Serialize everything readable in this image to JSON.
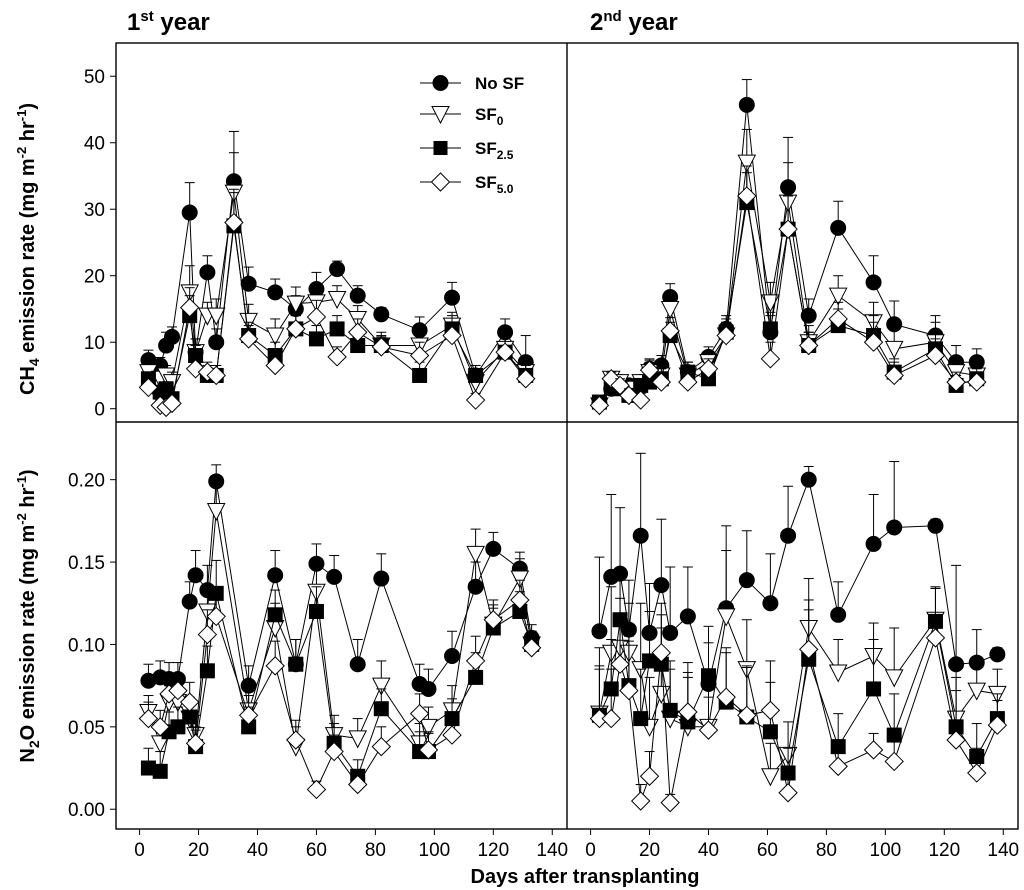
{
  "figure": {
    "x_axis_title": "Days after transplanting",
    "panel_titles": [
      {
        "base": "1",
        "sup": "st",
        "rest": " year"
      },
      {
        "base": "2",
        "sup": "nd",
        "rest": " year"
      }
    ],
    "ylabel_ch4": {
      "pre": "CH",
      "sub": "4",
      "mid": " emission rate (mg m",
      "sup1": "-2",
      "mid2": " hr",
      "sup2": "-1",
      "end": ")"
    },
    "ylabel_n2o": {
      "pre": "N",
      "sub": "2",
      "mid": "O emission rate (mg m",
      "sup1": "-2",
      "mid2": " hr",
      "sup2": "-1",
      "end": ")"
    },
    "legend": [
      {
        "base": "No SF",
        "sub": ""
      },
      {
        "base": "SF",
        "sub": "0"
      },
      {
        "base": "SF",
        "sub": "2.5"
      },
      {
        "base": "SF",
        "sub": "5.0"
      }
    ]
  },
  "chart_data": [
    {
      "type": "scatter",
      "title": "1st year",
      "xlabel": "Days after transplanting",
      "ylabel": "CH4 emission rate (mg m-2 hr-1)",
      "xlim": [
        -8,
        145
      ],
      "ylim": [
        -2,
        55
      ],
      "xticks": [
        0,
        20,
        40,
        60,
        80,
        100,
        120,
        140
      ],
      "yticks": [
        0,
        10,
        20,
        30,
        40,
        50
      ],
      "ytick_labels": [
        "0",
        "10",
        "20",
        "30",
        "40",
        "50"
      ],
      "x": [
        3,
        7,
        9,
        11,
        17,
        19,
        23,
        26,
        32,
        37,
        46,
        53,
        60,
        67,
        74,
        82,
        95,
        106,
        114,
        124,
        131
      ],
      "series": [
        {
          "name": "No SF",
          "marker": "circle",
          "values": [
            7.3,
            6.5,
            9.5,
            10.8,
            29.5,
            8.5,
            20.5,
            10.0,
            34.2,
            18.8,
            17.5,
            15.0,
            18.0,
            21.0,
            17.0,
            14.2,
            11.8,
            16.7,
            5.0,
            11.5,
            7.0
          ],
          "errors": [
            1.5,
            1.2,
            2.0,
            1.5,
            4.5,
            2.0,
            2.5,
            2.0,
            7.5,
            2.5,
            2.0,
            2.0,
            2.5,
            1.2,
            1.5,
            1.0,
            2.0,
            2.3,
            1.5,
            2.0,
            4.0
          ]
        },
        {
          "name": "SF0",
          "marker": "triangle-down",
          "values": [
            5.5,
            4.5,
            5.0,
            4.0,
            17.5,
            8.5,
            14.0,
            14.0,
            32.5,
            13.2,
            11.0,
            15.8,
            16.0,
            16.5,
            13.5,
            9.5,
            9.5,
            12.5,
            4.0,
            9.0,
            5.5
          ],
          "errors": [
            1.0,
            1.0,
            1.5,
            1.5,
            4.0,
            2.0,
            2.0,
            2.5,
            6.0,
            2.5,
            2.5,
            2.5,
            2.5,
            2.0,
            2.0,
            2.0,
            2.0,
            2.0,
            1.5,
            2.0,
            2.0
          ]
        },
        {
          "name": "SF2.5",
          "marker": "square",
          "values": [
            4.5,
            2.5,
            3.0,
            1.5,
            14.0,
            8.0,
            5.0,
            5.0,
            27.5,
            11.0,
            8.0,
            12.0,
            10.5,
            12.0,
            9.5,
            9.5,
            5.0,
            12.0,
            5.0,
            8.5,
            5.0
          ],
          "errors": [
            1.0,
            1.0,
            1.0,
            1.0,
            3.0,
            1.5,
            1.5,
            1.5,
            5.0,
            2.0,
            2.0,
            2.0,
            2.0,
            2.0,
            1.5,
            1.5,
            2.0,
            2.0,
            1.5,
            2.0,
            2.0
          ]
        },
        {
          "name": "SF5.0",
          "marker": "diamond",
          "values": [
            3.2,
            0.5,
            0.2,
            0.8,
            15.2,
            6.0,
            5.5,
            5.0,
            28.0,
            10.5,
            6.5,
            12.0,
            13.8,
            7.8,
            11.5,
            9.3,
            8.0,
            11.0,
            1.3,
            8.5,
            4.5
          ],
          "errors": [
            1.0,
            0.8,
            0.5,
            0.8,
            3.0,
            1.5,
            1.5,
            1.5,
            5.0,
            2.0,
            1.5,
            2.0,
            2.5,
            1.5,
            2.0,
            1.5,
            2.0,
            2.0,
            1.0,
            2.0,
            2.0
          ]
        }
      ]
    },
    {
      "type": "scatter",
      "title": "2nd year",
      "xlabel": "Days after transplanting",
      "ylabel": "CH4 emission rate (mg m-2 hr-1)",
      "xlim": [
        -8,
        145
      ],
      "ylim": [
        -2,
        55
      ],
      "xticks": [
        0,
        20,
        40,
        60,
        80,
        100,
        120,
        140
      ],
      "yticks": [
        0,
        10,
        20,
        30,
        40,
        50
      ],
      "x": [
        3,
        7,
        10,
        13,
        17,
        20,
        24,
        27,
        33,
        40,
        46,
        53,
        61,
        67,
        74,
        84,
        96,
        103,
        117,
        124,
        131
      ],
      "series": [
        {
          "name": "No SF",
          "marker": "circle",
          "values": [
            0.8,
            3.0,
            4.0,
            3.5,
            4.0,
            6.0,
            6.5,
            16.8,
            5.5,
            7.8,
            12.0,
            45.7,
            11.5,
            33.3,
            14.0,
            27.2,
            19.0,
            12.7,
            11.0,
            7.0,
            7.0
          ],
          "errors": [
            1.0,
            1.0,
            1.0,
            1.0,
            1.0,
            1.5,
            1.5,
            2.0,
            1.5,
            1.5,
            2.0,
            3.8,
            2.5,
            7.5,
            2.5,
            4.0,
            4.0,
            3.5,
            3.0,
            2.5,
            2.0
          ]
        },
        {
          "name": "SF0",
          "marker": "triangle-down",
          "values": [
            0.5,
            4.5,
            4.0,
            3.0,
            4.0,
            5.5,
            5.0,
            15.0,
            5.0,
            7.0,
            11.0,
            37.0,
            16.0,
            31.0,
            10.0,
            17.0,
            13.0,
            9.0,
            10.0,
            5.5,
            5.0
          ],
          "errors": [
            1.0,
            1.0,
            1.0,
            1.0,
            1.0,
            1.5,
            1.5,
            2.0,
            1.5,
            1.5,
            2.0,
            5.0,
            3.0,
            6.0,
            2.5,
            3.0,
            3.0,
            3.0,
            3.0,
            2.0,
            2.0
          ]
        },
        {
          "name": "SF2.5",
          "marker": "square",
          "values": [
            1.0,
            3.5,
            3.0,
            2.0,
            3.5,
            4.0,
            4.5,
            11.0,
            5.5,
            4.5,
            11.5,
            31.0,
            12.0,
            27.0,
            9.5,
            12.5,
            11.0,
            5.5,
            9.0,
            3.5,
            4.5
          ],
          "errors": [
            1.0,
            1.0,
            1.0,
            1.0,
            1.0,
            1.0,
            1.5,
            2.0,
            1.5,
            1.5,
            2.0,
            4.5,
            2.5,
            5.0,
            2.0,
            2.5,
            3.0,
            2.0,
            2.5,
            1.5,
            1.5
          ]
        },
        {
          "name": "SF5.0",
          "marker": "diamond",
          "values": [
            0.5,
            4.5,
            3.5,
            2.0,
            1.3,
            5.8,
            4.0,
            11.7,
            4.0,
            6.0,
            11.0,
            32.0,
            7.5,
            27.0,
            9.5,
            13.5,
            10.0,
            5.0,
            8.0,
            4.0,
            4.0
          ],
          "errors": [
            1.0,
            1.0,
            1.0,
            1.0,
            1.0,
            1.5,
            1.5,
            2.0,
            1.5,
            1.5,
            2.0,
            4.5,
            2.5,
            5.0,
            2.0,
            2.5,
            3.0,
            2.0,
            2.5,
            1.5,
            1.5
          ]
        }
      ]
    },
    {
      "type": "scatter",
      "title": "1st year",
      "xlabel": "Days after transplanting",
      "ylabel": "N2O emission rate (mg m-2 hr-1)",
      "xlim": [
        -8,
        145
      ],
      "ylim": [
        -0.012,
        0.235
      ],
      "xticks": [
        0,
        20,
        40,
        60,
        80,
        100,
        120,
        140
      ],
      "xtick_labels": [
        "0",
        "20",
        "40",
        "60",
        "80",
        "100",
        "120",
        "140"
      ],
      "yticks": [
        0.0,
        0.05,
        0.1,
        0.15,
        0.2
      ],
      "ytick_labels": [
        "0.00",
        "0.05",
        "0.10",
        "0.15",
        "0.20"
      ],
      "x": [
        3,
        7,
        10,
        13,
        17,
        19,
        23,
        26,
        37,
        46,
        53,
        60,
        66,
        74,
        82,
        95,
        98,
        106,
        114,
        120,
        129,
        133
      ],
      "series": [
        {
          "name": "No SF",
          "marker": "circle",
          "values": [
            0.078,
            0.08,
            0.079,
            0.079,
            0.126,
            0.142,
            0.133,
            0.199,
            0.075,
            0.142,
            0.088,
            0.149,
            0.141,
            0.088,
            0.14,
            0.076,
            0.073,
            0.093,
            0.135,
            0.158,
            0.146,
            0.104
          ],
          "errors": [
            0.01,
            0.01,
            0.01,
            0.01,
            0.012,
            0.015,
            0.015,
            0.01,
            0.012,
            0.015,
            0.015,
            0.012,
            0.013,
            0.015,
            0.015,
            0.012,
            0.012,
            0.015,
            0.015,
            0.01,
            0.01,
            0.008
          ]
        },
        {
          "name": "SF0",
          "marker": "triangle-down",
          "values": [
            0.059,
            0.04,
            0.065,
            0.065,
            0.055,
            0.045,
            0.12,
            0.181,
            0.06,
            0.11,
            0.038,
            0.132,
            0.045,
            0.043,
            0.075,
            0.04,
            0.05,
            0.06,
            0.155,
            0.112,
            0.14,
            0.1
          ],
          "errors": [
            0.01,
            0.01,
            0.01,
            0.01,
            0.012,
            0.012,
            0.015,
            0.015,
            0.012,
            0.015,
            0.012,
            0.015,
            0.012,
            0.012,
            0.015,
            0.012,
            0.012,
            0.015,
            0.015,
            0.012,
            0.012,
            0.008
          ]
        },
        {
          "name": "SF2.5",
          "marker": "square",
          "values": [
            0.025,
            0.023,
            0.047,
            0.05,
            0.056,
            0.038,
            0.084,
            0.131,
            0.05,
            0.118,
            0.088,
            0.12,
            0.04,
            0.02,
            0.061,
            0.035,
            0.035,
            0.055,
            0.08,
            0.11,
            0.12,
            0.1
          ],
          "errors": [
            0.012,
            0.012,
            0.012,
            0.012,
            0.012,
            0.01,
            0.015,
            0.02,
            0.012,
            0.015,
            0.015,
            0.015,
            0.012,
            0.01,
            0.012,
            0.012,
            0.012,
            0.012,
            0.015,
            0.012,
            0.012,
            0.008
          ]
        },
        {
          "name": "SF5.0",
          "marker": "diamond",
          "values": [
            0.055,
            0.05,
            0.07,
            0.072,
            0.065,
            0.04,
            0.106,
            0.117,
            0.057,
            0.087,
            0.042,
            0.012,
            0.035,
            0.015,
            0.038,
            0.058,
            0.036,
            0.045,
            0.09,
            0.115,
            0.127,
            0.098
          ],
          "errors": [
            0.01,
            0.01,
            0.01,
            0.01,
            0.012,
            0.01,
            0.015,
            0.015,
            0.012,
            0.015,
            0.012,
            0.005,
            0.01,
            0.008,
            0.012,
            0.012,
            0.01,
            0.012,
            0.015,
            0.012,
            0.012,
            0.008
          ]
        }
      ]
    },
    {
      "type": "scatter",
      "title": "2nd year",
      "xlabel": "Days after transplanting",
      "ylabel": "N2O emission rate (mg m-2 hr-1)",
      "xlim": [
        -8,
        145
      ],
      "ylim": [
        -0.012,
        0.235
      ],
      "xticks": [
        0,
        20,
        40,
        60,
        80,
        100,
        120,
        140
      ],
      "xtick_labels": [
        "0",
        "20",
        "40",
        "60",
        "80",
        "100",
        "120",
        "140"
      ],
      "yticks": [
        0.0,
        0.05,
        0.1,
        0.15,
        0.2
      ],
      "x": [
        3,
        7,
        10,
        13,
        17,
        20,
        24,
        27,
        33,
        40,
        46,
        53,
        61,
        67,
        74,
        84,
        96,
        103,
        117,
        124,
        131,
        138
      ],
      "series": [
        {
          "name": "No SF",
          "marker": "circle",
          "values": [
            0.108,
            0.141,
            0.143,
            0.109,
            0.166,
            0.107,
            0.136,
            0.107,
            0.117,
            0.076,
            0.122,
            0.139,
            0.125,
            0.166,
            0.2,
            0.118,
            0.161,
            0.171,
            0.172,
            0.088,
            0.089,
            0.094
          ],
          "errors": [
            0.045,
            0.05,
            0.04,
            0.03,
            0.05,
            0.03,
            0.04,
            0.04,
            0.03,
            0.025,
            0.05,
            0.03,
            0.03,
            0.03,
            0.008,
            0.02,
            0.03,
            0.04,
            0.004,
            0.06,
            0.02,
            0.004
          ]
        },
        {
          "name": "SF0",
          "marker": "triangle-down",
          "values": [
            0.058,
            0.095,
            0.098,
            0.095,
            0.085,
            0.05,
            0.07,
            0.055,
            0.05,
            0.05,
            0.117,
            0.085,
            0.02,
            0.033,
            0.11,
            0.083,
            0.093,
            0.08,
            0.115,
            0.055,
            0.072,
            0.07
          ],
          "errors": [
            0.04,
            0.04,
            0.03,
            0.03,
            0.04,
            0.03,
            0.04,
            0.03,
            0.03,
            0.03,
            0.04,
            0.03,
            0.02,
            0.02,
            0.03,
            0.02,
            0.02,
            0.03,
            0.02,
            0.03,
            0.02,
            0.015
          ]
        },
        {
          "name": "SF2.5",
          "marker": "square",
          "values": [
            0.057,
            0.073,
            0.115,
            0.075,
            0.055,
            0.09,
            0.088,
            0.06,
            0.053,
            0.081,
            0.065,
            0.056,
            0.047,
            0.022,
            0.091,
            0.038,
            0.073,
            0.045,
            0.114,
            0.05,
            0.032,
            0.055
          ],
          "errors": [
            0.03,
            0.03,
            0.03,
            0.03,
            0.03,
            0.03,
            0.03,
            0.03,
            0.03,
            0.03,
            0.03,
            0.03,
            0.03,
            0.015,
            0.03,
            0.02,
            0.03,
            0.025,
            0.02,
            0.03,
            0.02,
            0.015
          ]
        },
        {
          "name": "SF5.0",
          "marker": "diamond",
          "values": [
            0.055,
            0.055,
            0.088,
            0.072,
            0.005,
            0.02,
            0.095,
            0.004,
            0.059,
            0.048,
            0.068,
            0.057,
            0.06,
            0.01,
            0.097,
            0.026,
            0.036,
            0.029,
            0.104,
            0.042,
            0.022,
            0.051
          ],
          "errors": [
            0.03,
            0.03,
            0.03,
            0.03,
            0.01,
            0.015,
            0.03,
            0.005,
            0.03,
            0.02,
            0.03,
            0.03,
            0.03,
            0.008,
            0.03,
            0.015,
            0.01,
            0.015,
            0.03,
            0.03,
            0.015,
            0.015
          ]
        }
      ]
    }
  ]
}
